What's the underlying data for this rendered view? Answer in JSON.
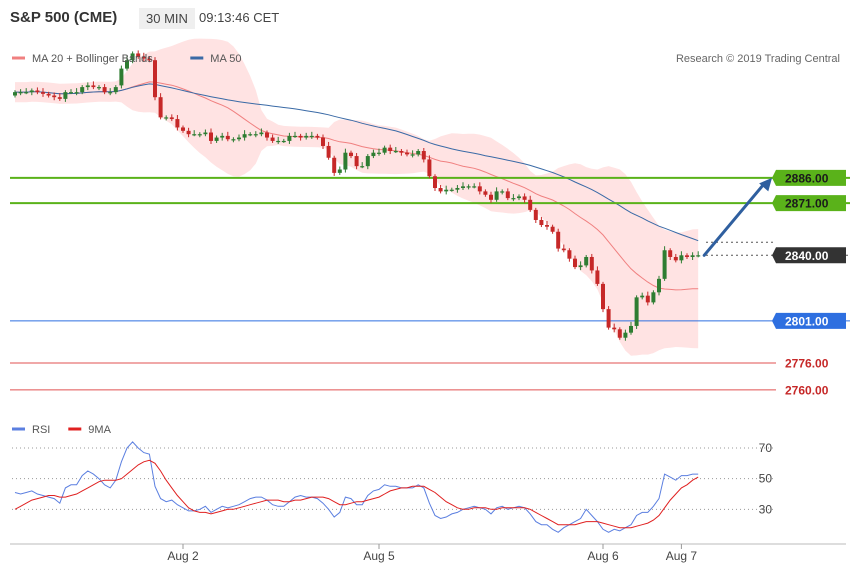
{
  "header": {
    "instrument": "S&P 500 (CME)",
    "interval": "30 MIN",
    "time": "09:13:46 CET"
  },
  "colors": {
    "ma20": "#f08080",
    "bands_fill": "#ffe3e3",
    "ma50": "#3a6aa6",
    "up": "#2e7d32",
    "down": "#c62828",
    "green_level": "#5ab21a",
    "blue_level": "#2e6fe0",
    "red_level": "#e05050",
    "current_price": "#333333",
    "rsi": "#5b7fe0",
    "rsi_ma": "#e02020",
    "arrow": "#2f5f9f"
  },
  "chart_data": [
    {
      "type": "candlestick",
      "legend": [
        {
          "label": "MA 20 + Bollinger Bands",
          "color": "#f08080"
        },
        {
          "label": "MA 50",
          "color": "#3a6aa6"
        }
      ],
      "legend_position": "top-left",
      "watermark": "Research © 2019 Trading Central",
      "ylim": [
        2751,
        2968
      ],
      "x_tick_labels": [
        {
          "label": "Aug 2",
          "bar": 30
        },
        {
          "label": "Aug 5",
          "bar": 65
        },
        {
          "label": "Aug 6",
          "bar": 105
        },
        {
          "label": "Aug 7",
          "bar": 119
        }
      ],
      "levels": [
        {
          "value": 2886.0,
          "label": "2886.00",
          "kind": "resistance",
          "style": "solid-green"
        },
        {
          "value": 2871.0,
          "label": "2871.00",
          "kind": "resistance",
          "style": "solid-green"
        },
        {
          "value": 2840.0,
          "label": "2840.00",
          "kind": "current",
          "style": "dotted-dark"
        },
        {
          "value": 2801.0,
          "label": "2801.00",
          "kind": "pivot",
          "style": "solid-blue"
        },
        {
          "value": 2776.0,
          "label": "2776.00",
          "kind": "support",
          "style": "solid-red"
        },
        {
          "value": 2760.0,
          "label": "2760.00",
          "kind": "support",
          "style": "solid-red"
        }
      ],
      "forecast_arrow": {
        "from": 2840,
        "to": 2886,
        "direction": "up"
      },
      "close": [
        2937,
        2937,
        2937,
        2938,
        2937,
        2936,
        2935,
        2934,
        2933,
        2937,
        2937,
        2937,
        2940,
        2941,
        2940,
        2940,
        2937,
        2937,
        2940,
        2951,
        2956,
        2960,
        2958,
        2957,
        2956,
        2934,
        2922,
        2922,
        2921,
        2916,
        2914,
        2912,
        2912,
        2912,
        2913,
        2908,
        2910,
        2911,
        2909,
        2909,
        2910,
        2912,
        2912,
        2912,
        2913,
        2910,
        2908,
        2908,
        2908,
        2911,
        2911,
        2910,
        2911,
        2911,
        2910,
        2905,
        2898,
        2889,
        2891,
        2901,
        2899,
        2893,
        2893,
        2899,
        2901,
        2901,
        2904,
        2902,
        2902,
        2901,
        2900,
        2900,
        2902,
        2897,
        2887,
        2880,
        2878,
        2879,
        2879,
        2880,
        2881,
        2881,
        2881,
        2878,
        2876,
        2873,
        2878,
        2878,
        2874,
        2874,
        2875,
        2873,
        2867,
        2861,
        2858,
        2857,
        2854,
        2844,
        2843,
        2838,
        2833,
        2834,
        2839,
        2831,
        2823,
        2808,
        2797,
        2796,
        2791,
        2794,
        2798,
        2815,
        2816,
        2812,
        2818,
        2826,
        2843,
        2839,
        2837,
        2840,
        2839,
        2840,
        2840
      ],
      "open": [
        2935,
        2937,
        2937,
        2937,
        2938,
        2937,
        2936,
        2935,
        2934,
        2933,
        2937,
        2937,
        2937,
        2940,
        2941,
        2940,
        2940,
        2937,
        2937,
        2941,
        2951,
        2956,
        2960,
        2958,
        2957,
        2956,
        2934,
        2922,
        2922,
        2921,
        2916,
        2914,
        2912,
        2912,
        2912,
        2913,
        2908,
        2910,
        2911,
        2909,
        2909,
        2910,
        2912,
        2912,
        2912,
        2913,
        2910,
        2908,
        2908,
        2908,
        2911,
        2911,
        2910,
        2911,
        2911,
        2910,
        2905,
        2898,
        2889,
        2891,
        2901,
        2899,
        2893,
        2893,
        2899,
        2901,
        2901,
        2904,
        2902,
        2902,
        2901,
        2900,
        2900,
        2902,
        2897,
        2887,
        2880,
        2878,
        2879,
        2879,
        2880,
        2881,
        2881,
        2881,
        2878,
        2876,
        2873,
        2878,
        2878,
        2874,
        2874,
        2875,
        2873,
        2867,
        2861,
        2858,
        2857,
        2854,
        2844,
        2843,
        2838,
        2833,
        2834,
        2839,
        2831,
        2823,
        2808,
        2797,
        2796,
        2791,
        2794,
        2798,
        2815,
        2816,
        2812,
        2818,
        2826,
        2843,
        2839,
        2837,
        2840,
        2839,
        2840
      ]
    },
    {
      "type": "line",
      "legend": [
        {
          "label": "RSI",
          "color": "#5b7fe0"
        },
        {
          "label": "9MA",
          "color": "#e02020"
        }
      ],
      "y_tick_labels": [
        "70",
        "50",
        "30"
      ],
      "ylim": [
        10,
        85
      ],
      "dotted_levels": [
        70,
        50,
        30
      ],
      "series": [
        {
          "name": "RSI",
          "values": [
            41,
            40,
            41,
            42,
            40,
            39,
            38,
            37,
            34,
            44,
            46,
            46,
            52,
            55,
            53,
            50,
            46,
            44,
            49,
            61,
            70,
            74,
            70,
            67,
            66,
            45,
            37,
            35,
            36,
            33,
            31,
            29,
            29,
            30,
            32,
            28,
            30,
            32,
            31,
            32,
            33,
            35,
            37,
            38,
            38,
            36,
            33,
            32,
            32,
            35,
            38,
            39,
            38,
            38,
            37,
            34,
            30,
            25,
            28,
            38,
            37,
            33,
            33,
            39,
            42,
            43,
            46,
            45,
            45,
            44,
            44,
            44,
            46,
            44,
            34,
            26,
            24,
            25,
            27,
            28,
            30,
            31,
            32,
            31,
            30,
            27,
            31,
            32,
            30,
            31,
            32,
            31,
            27,
            22,
            20,
            20,
            17,
            15,
            18,
            20,
            22,
            24,
            30,
            26,
            22,
            17,
            15,
            17,
            16,
            18,
            20,
            26,
            28,
            28,
            32,
            37,
            53,
            51,
            49,
            52,
            52,
            53,
            53
          ]
        },
        {
          "name": "9MA",
          "values": [
            30,
            32,
            34,
            36,
            37,
            38,
            39,
            39,
            38,
            38,
            39,
            40,
            42,
            44,
            46,
            48,
            49,
            49,
            49,
            50,
            53,
            56,
            59,
            61,
            62,
            60,
            55,
            49,
            44,
            39,
            35,
            31,
            29,
            28,
            28,
            27,
            28,
            29,
            30,
            30,
            31,
            32,
            33,
            34,
            35,
            36,
            36,
            36,
            35,
            35,
            36,
            36,
            37,
            38,
            38,
            38,
            37,
            35,
            33,
            33,
            34,
            35,
            35,
            36,
            37,
            38,
            40,
            42,
            43,
            44,
            44,
            45,
            45,
            45,
            43,
            41,
            38,
            35,
            33,
            31,
            30,
            30,
            31,
            31,
            31,
            30,
            30,
            31,
            31,
            31,
            31,
            31,
            30,
            28,
            26,
            24,
            22,
            20,
            20,
            20,
            20,
            21,
            22,
            22,
            22,
            21,
            20,
            19,
            18,
            18,
            18,
            19,
            20,
            21,
            23,
            26,
            31,
            36,
            40,
            44,
            46,
            49,
            51
          ]
        }
      ]
    }
  ]
}
